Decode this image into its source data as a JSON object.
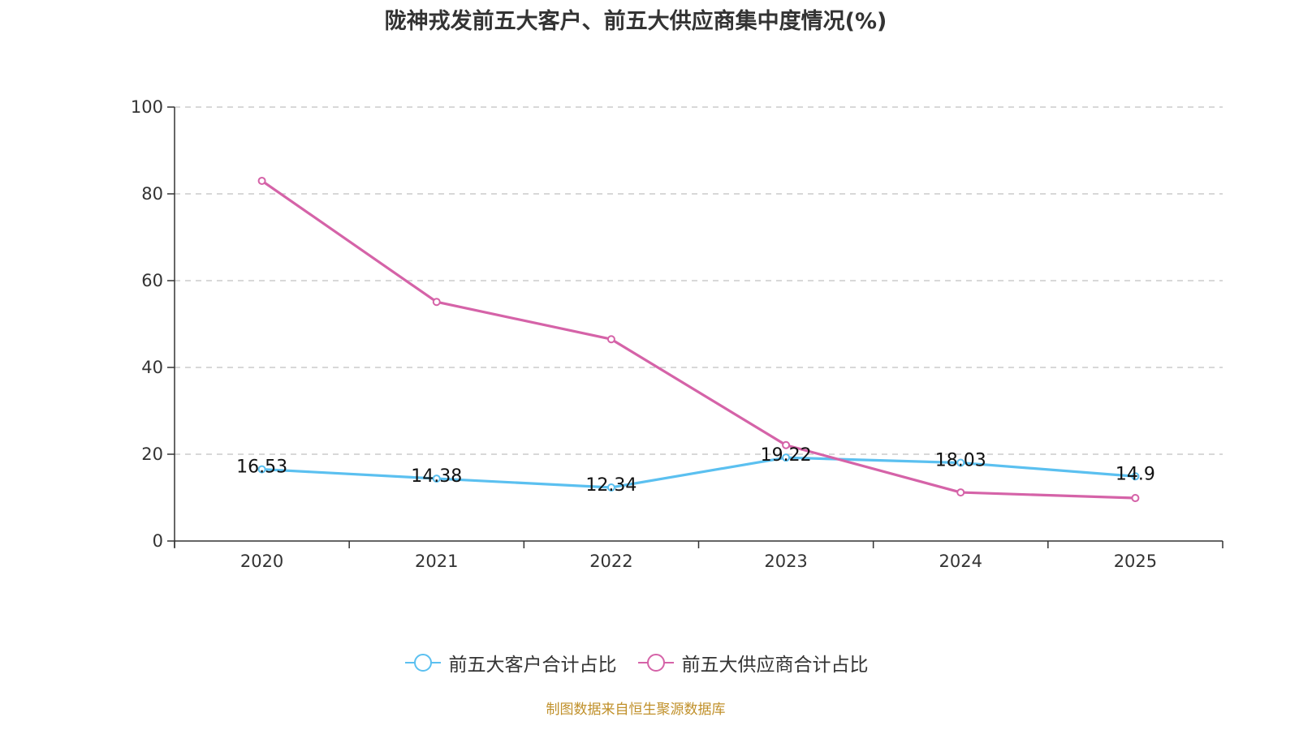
{
  "chart_data": {
    "type": "line",
    "title": "陇神戎发前五大客户、前五大供应商集中度情况(%)",
    "xlabel": "",
    "ylabel": "",
    "categories": [
      "2020",
      "2021",
      "2022",
      "2023",
      "2024",
      "2025"
    ],
    "ylim": [
      0,
      100
    ],
    "yticks": [
      0,
      20,
      40,
      60,
      80,
      100
    ],
    "grid": true,
    "legend_position": "bottom",
    "series": [
      {
        "name": "前五大客户合计占比",
        "color": "#5bc0f0",
        "values": [
          16.53,
          14.38,
          12.34,
          19.22,
          18.03,
          14.9
        ],
        "labels": [
          "16.53",
          "14.38",
          "12.34",
          "19.22",
          "18.03",
          "14.9"
        ],
        "show_labels": true
      },
      {
        "name": "前五大供应商合计占比",
        "color": "#d563a8",
        "values": [
          83.0,
          55.1,
          46.5,
          22.1,
          11.2,
          9.9
        ],
        "show_labels": false
      }
    ]
  },
  "source_note": "制图数据来自恒生聚源数据库"
}
